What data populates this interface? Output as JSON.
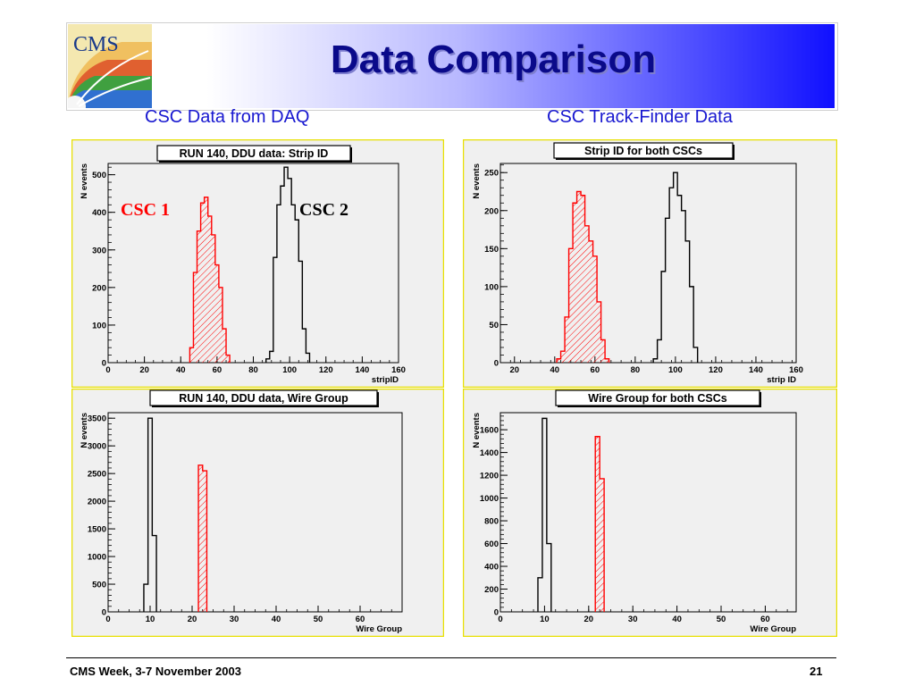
{
  "slide": {
    "title": "Data Comparison",
    "subtitle_left": "CSC Data from DAQ",
    "subtitle_right": "CSC Track-Finder Data",
    "logo_text": "CMS",
    "footer_left": "CMS Week, 3-7 November 2003",
    "footer_right": "21"
  },
  "colors": {
    "csc1": "#ff0000",
    "csc2": "#000000",
    "panel_border": "#e8e000",
    "panel_bg": "#f0f0f0"
  },
  "chart_data": [
    {
      "type": "histogram",
      "title": "RUN 140, DDU data: Strip ID",
      "xlabel": "stripID",
      "ylabel": "N events",
      "xlim": [
        0,
        160
      ],
      "ylim": [
        0,
        530
      ],
      "xticks": [
        0,
        20,
        40,
        60,
        80,
        100,
        120,
        140,
        160
      ],
      "yticks": [
        0,
        100,
        200,
        300,
        400,
        500
      ],
      "annotations": [
        {
          "text": "CSC 1",
          "color": "#ff0000"
        },
        {
          "text": "CSC 2",
          "color": "#000000"
        }
      ],
      "series": [
        {
          "color": "#ff0000",
          "hatched": true,
          "x": [
            46,
            48,
            50,
            52,
            54,
            56,
            58,
            60,
            62,
            64,
            66
          ],
          "y": [
            40,
            240,
            350,
            425,
            440,
            390,
            340,
            260,
            200,
            90,
            20
          ]
        },
        {
          "color": "#000000",
          "hatched": false,
          "x": [
            88,
            90,
            92,
            94,
            96,
            98,
            100,
            102,
            104,
            106,
            108,
            110
          ],
          "y": [
            10,
            30,
            280,
            420,
            470,
            520,
            490,
            420,
            380,
            270,
            90,
            25
          ]
        }
      ]
    },
    {
      "type": "histogram",
      "title": "Strip ID for both CSCs",
      "xlabel": "strip ID",
      "ylabel": "N events",
      "xlim": [
        13,
        160
      ],
      "ylim": [
        0,
        262
      ],
      "xticks": [
        20,
        40,
        60,
        80,
        100,
        120,
        140,
        160
      ],
      "yticks": [
        0,
        50,
        100,
        150,
        200,
        250
      ],
      "series": [
        {
          "color": "#ff0000",
          "hatched": true,
          "x": [
            42,
            44,
            46,
            48,
            50,
            52,
            54,
            56,
            58,
            60,
            62,
            64,
            66
          ],
          "y": [
            5,
            15,
            60,
            150,
            210,
            225,
            220,
            180,
            160,
            140,
            80,
            30,
            5
          ]
        },
        {
          "color": "#000000",
          "hatched": false,
          "x": [
            90,
            92,
            94,
            96,
            98,
            100,
            102,
            104,
            106,
            108,
            110
          ],
          "y": [
            5,
            30,
            120,
            190,
            230,
            250,
            220,
            200,
            160,
            100,
            20
          ]
        }
      ]
    },
    {
      "type": "histogram",
      "title": "RUN 140, DDU data, Wire Group",
      "xlabel": "Wire Group",
      "ylabel": "N events",
      "xlim": [
        0,
        70
      ],
      "ylim": [
        0,
        3600
      ],
      "xticks": [
        0,
        10,
        20,
        30,
        40,
        50,
        60
      ],
      "yticks": [
        0,
        500,
        1000,
        1500,
        2000,
        2500,
        3000,
        3500
      ],
      "series": [
        {
          "color": "#000000",
          "hatched": false,
          "x": [
            9,
            10,
            11
          ],
          "y": [
            500,
            3500,
            1380
          ]
        },
        {
          "color": "#ff0000",
          "hatched": true,
          "x": [
            22,
            23
          ],
          "y": [
            2650,
            2550
          ]
        }
      ]
    },
    {
      "type": "histogram",
      "title": "Wire Group for both CSCs",
      "xlabel": "Wire Group",
      "ylabel": "N events",
      "xlim": [
        0,
        67
      ],
      "ylim": [
        0,
        1750
      ],
      "xticks": [
        0,
        10,
        20,
        30,
        40,
        50,
        60
      ],
      "yticks": [
        0,
        200,
        400,
        600,
        800,
        1000,
        1200,
        1400,
        1600
      ],
      "series": [
        {
          "color": "#000000",
          "hatched": false,
          "x": [
            9,
            10,
            11
          ],
          "y": [
            300,
            1700,
            600
          ]
        },
        {
          "color": "#ff0000",
          "hatched": true,
          "x": [
            22,
            23
          ],
          "y": [
            1540,
            1170
          ]
        }
      ]
    }
  ]
}
